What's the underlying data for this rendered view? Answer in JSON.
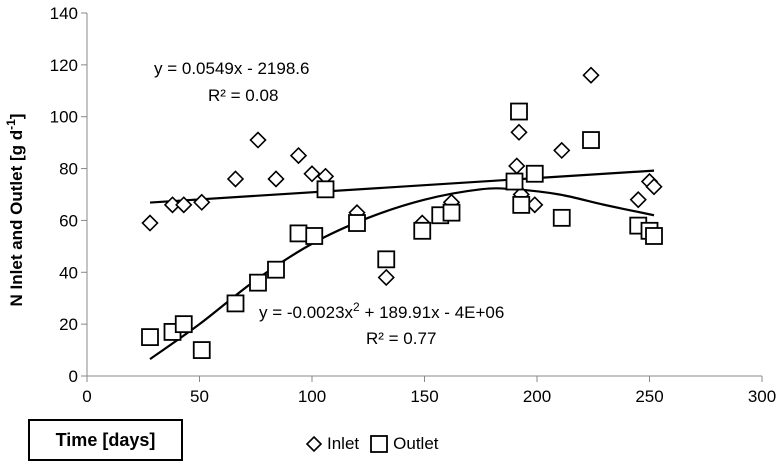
{
  "chart_data": {
    "type": "scatter",
    "title": "",
    "xlabel": "Time [days]",
    "ylabel": "N Inlet and Outlet [g d",
    "ylabel_sup": "-1",
    "ylabel_end": "]",
    "xlim": [
      0,
      300
    ],
    "ylim": [
      0,
      140
    ],
    "xticks": [
      0,
      50,
      100,
      150,
      200,
      250,
      300
    ],
    "yticks": [
      0,
      20,
      40,
      60,
      80,
      100,
      120,
      140
    ],
    "grid": false,
    "legend_position": "bottom",
    "series": [
      {
        "name": "Inlet",
        "marker": "diamond",
        "color": "#000000",
        "points": [
          [
            28,
            59
          ],
          [
            38,
            66
          ],
          [
            43,
            66
          ],
          [
            51,
            67
          ],
          [
            66,
            76
          ],
          [
            76,
            91
          ],
          [
            84,
            76
          ],
          [
            94,
            85
          ],
          [
            100,
            78
          ],
          [
            106,
            77
          ],
          [
            120,
            63
          ],
          [
            133,
            38
          ],
          [
            149,
            59
          ],
          [
            157,
            62
          ],
          [
            162,
            67
          ],
          [
            191,
            81
          ],
          [
            192,
            94
          ],
          [
            193,
            70
          ],
          [
            199,
            66
          ],
          [
            211,
            87
          ],
          [
            224,
            116
          ],
          [
            245,
            68
          ],
          [
            250,
            75
          ],
          [
            252,
            73
          ]
        ]
      },
      {
        "name": "Outlet",
        "marker": "square",
        "color": "#000000",
        "points": [
          [
            28,
            15
          ],
          [
            38,
            17
          ],
          [
            43,
            20
          ],
          [
            51,
            10
          ],
          [
            66,
            28
          ],
          [
            76,
            36
          ],
          [
            84,
            41
          ],
          [
            94,
            55
          ],
          [
            101,
            54
          ],
          [
            106,
            72
          ],
          [
            120,
            59
          ],
          [
            133,
            45
          ],
          [
            149,
            56
          ],
          [
            157,
            62
          ],
          [
            162,
            63
          ],
          [
            190,
            75
          ],
          [
            192,
            102
          ],
          [
            193,
            66
          ],
          [
            199,
            78
          ],
          [
            211,
            61
          ],
          [
            224,
            91
          ],
          [
            245,
            58
          ],
          [
            250,
            56
          ],
          [
            252,
            54
          ]
        ]
      }
    ],
    "trendlines": [
      {
        "series": "Inlet",
        "kind": "linear",
        "range": [
          28,
          252
        ],
        "values": [
          [
            28,
            66.9
          ],
          [
            252,
            79.2
          ]
        ],
        "equation": "y = 0.0549x - 2198.6",
        "r2": "R² = 0.08"
      },
      {
        "series": "Outlet",
        "kind": "polynomial",
        "range": [
          28,
          252
        ],
        "values": [
          [
            28,
            6.5
          ],
          [
            50,
            20
          ],
          [
            75,
            37
          ],
          [
            100,
            51
          ],
          [
            125,
            61
          ],
          [
            150,
            68
          ],
          [
            175,
            72
          ],
          [
            190,
            72
          ],
          [
            210,
            70
          ],
          [
            230,
            66
          ],
          [
            252,
            62
          ]
        ],
        "equation_main": "y = -0.0023x",
        "equation_sup": "2",
        "equation_rest": " + 189.91x - 4E+06",
        "r2": "R² = 0.77"
      }
    ]
  }
}
